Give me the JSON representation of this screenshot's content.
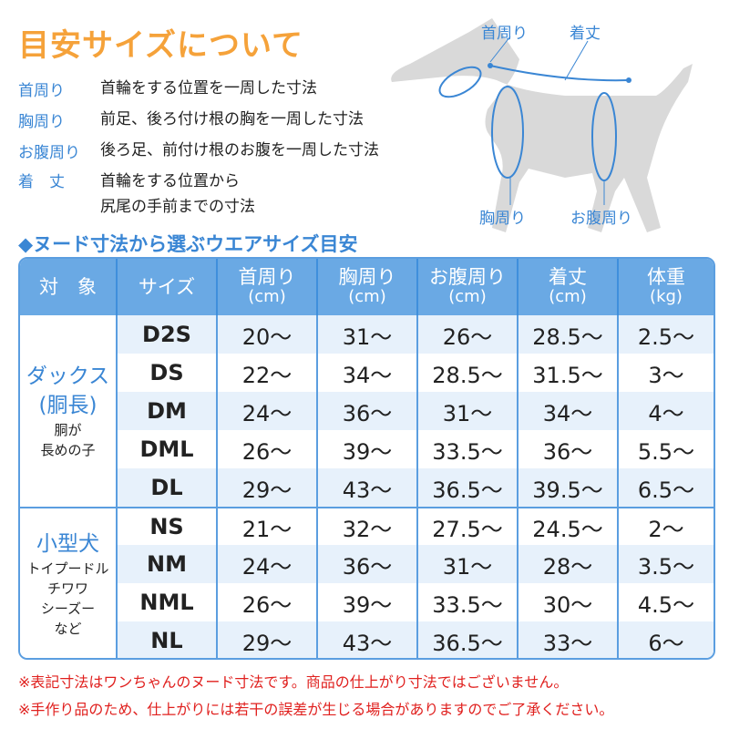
{
  "title": "目安サイズについて",
  "definitions": [
    {
      "term": "首周り",
      "desc": "首輪をする位置を一周した寸法"
    },
    {
      "term": "胸周り",
      "desc": "前足、後ろ付け根の胸を一周した寸法"
    },
    {
      "term": "お腹周り",
      "desc": "後ろ足、前付け根のお腹を一周した寸法"
    },
    {
      "term": "着　丈",
      "desc": "首輪をする位置から\n尻尾の手前までの寸法"
    }
  ],
  "diagram": {
    "neck": "首周り",
    "length": "着丈",
    "chest": "胸周り",
    "belly": "お腹周り"
  },
  "table_title": "◆ヌード寸法から選ぶウエアサイズ目安",
  "headers": [
    {
      "l": "対　象",
      "u": ""
    },
    {
      "l": "サイズ",
      "u": ""
    },
    {
      "l": "首周り",
      "u": "(cm)"
    },
    {
      "l": "胸周り",
      "u": "(cm)"
    },
    {
      "l": "お腹周り",
      "u": "(cm)"
    },
    {
      "l": "着丈",
      "u": "(cm)"
    },
    {
      "l": "体重",
      "u": "(kg)"
    }
  ],
  "groups": [
    {
      "name": "ダックス\n(胴長)",
      "sub": "胴が\n長めの子",
      "rows": [
        [
          "D2S",
          "20〜",
          "31〜",
          "26〜",
          "28.5〜",
          "2.5〜"
        ],
        [
          "DS",
          "22〜",
          "34〜",
          "28.5〜",
          "31.5〜",
          "3〜"
        ],
        [
          "DM",
          "24〜",
          "36〜",
          "31〜",
          "34〜",
          "4〜"
        ],
        [
          "DML",
          "26〜",
          "39〜",
          "33.5〜",
          "36〜",
          "5.5〜"
        ],
        [
          "DL",
          "29〜",
          "43〜",
          "36.5〜",
          "39.5〜",
          "6.5〜"
        ]
      ]
    },
    {
      "name": "小型犬",
      "sub": "トイプードル\nチワワ\nシーズー\nなど",
      "rows": [
        [
          "NS",
          "21〜",
          "32〜",
          "27.5〜",
          "24.5〜",
          "2〜"
        ],
        [
          "NM",
          "24〜",
          "36〜",
          "31〜",
          "28〜",
          "3.5〜"
        ],
        [
          "NML",
          "26〜",
          "39〜",
          "33.5〜",
          "30〜",
          "4.5〜"
        ],
        [
          "NL",
          "29〜",
          "43〜",
          "36.5〜",
          "33〜",
          "6〜"
        ]
      ]
    }
  ],
  "notes": [
    "※表記寸法はワンちゃんのヌード寸法です。商品の仕上がり寸法ではございません。",
    "※手作り品のため、仕上がりには若干の誤差が生じる場合がありますのでご了承ください。"
  ],
  "colors": {
    "title": "#f5a23a",
    "accent": "#3a86d4",
    "header": "#6aa9e4",
    "note": "#e0201e"
  }
}
